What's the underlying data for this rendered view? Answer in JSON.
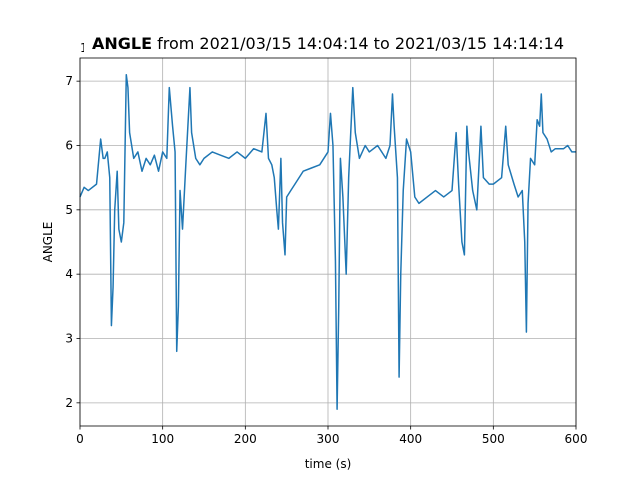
{
  "chart_data": {
    "type": "line",
    "title_bold": "ANGLE",
    "title_rest": "from 2021/03/15 14:04:14 to 2021/03/15 14:14:14",
    "x_label": "time (s)",
    "y_label": "ANGLE",
    "y_offset": "1e8",
    "x": [
      0,
      5,
      10,
      20,
      25,
      28,
      30,
      33,
      36,
      38,
      40,
      42,
      45,
      47,
      50,
      53,
      56,
      58,
      60,
      65,
      70,
      75,
      80,
      85,
      90,
      95,
      100,
      105,
      108,
      112,
      115,
      117,
      119,
      121,
      124,
      128,
      133,
      135,
      140,
      145,
      150,
      160,
      170,
      180,
      190,
      200,
      210,
      220,
      225,
      228,
      232,
      235,
      238,
      240,
      243,
      245,
      248,
      250,
      255,
      260,
      270,
      280,
      290,
      300,
      303,
      306,
      309,
      311,
      313,
      315,
      318,
      322,
      325,
      330,
      333,
      338,
      345,
      350,
      360,
      370,
      375,
      378,
      380,
      384,
      386,
      388,
      391,
      395,
      400,
      405,
      410,
      420,
      430,
      440,
      450,
      455,
      458,
      462,
      465,
      468,
      470,
      475,
      480,
      485,
      488,
      495,
      500,
      510,
      515,
      518,
      525,
      530,
      535,
      538,
      540,
      542,
      545,
      550,
      553,
      556,
      558,
      560,
      565,
      570,
      575,
      585,
      590,
      595,
      600
    ],
    "series": [
      {
        "name": "ANGLE",
        "color": "#1f77b4",
        "values": [
          5.2,
          5.35,
          5.3,
          5.4,
          6.1,
          5.8,
          5.8,
          5.9,
          5.5,
          3.2,
          3.8,
          5.0,
          5.6,
          4.7,
          4.5,
          4.8,
          7.1,
          6.9,
          6.2,
          5.8,
          5.9,
          5.6,
          5.8,
          5.7,
          5.85,
          5.6,
          5.9,
          5.8,
          6.9,
          6.3,
          5.9,
          2.8,
          3.5,
          5.3,
          4.7,
          5.7,
          6.9,
          6.2,
          5.8,
          5.7,
          5.8,
          5.9,
          5.85,
          5.8,
          5.9,
          5.8,
          5.95,
          5.9,
          6.5,
          5.8,
          5.7,
          5.5,
          5.0,
          4.7,
          5.8,
          4.8,
          4.3,
          5.2,
          5.3,
          5.4,
          5.6,
          5.65,
          5.7,
          5.9,
          6.5,
          6.0,
          4.2,
          1.9,
          3.5,
          5.8,
          5.2,
          4.0,
          5.5,
          6.9,
          6.2,
          5.8,
          6.0,
          5.9,
          6.0,
          5.8,
          6.0,
          6.8,
          6.3,
          5.5,
          2.4,
          4.0,
          5.3,
          6.1,
          5.9,
          5.2,
          5.1,
          5.2,
          5.3,
          5.2,
          5.3,
          6.2,
          5.4,
          4.5,
          4.3,
          6.3,
          5.9,
          5.3,
          5.0,
          6.3,
          5.5,
          5.4,
          5.4,
          5.5,
          6.3,
          5.7,
          5.4,
          5.2,
          5.3,
          4.5,
          3.1,
          5.1,
          5.8,
          5.7,
          6.4,
          6.3,
          6.8,
          6.2,
          6.1,
          5.9,
          5.95,
          5.95,
          6.0,
          5.9,
          5.9
        ]
      }
    ],
    "xlim": [
      0,
      600
    ],
    "xticks": [
      0,
      100,
      200,
      300,
      400,
      500,
      600
    ],
    "ylim": [
      1.64,
      7.36
    ],
    "yticks": [
      2,
      3,
      4,
      5,
      6,
      7
    ],
    "grid": true
  }
}
